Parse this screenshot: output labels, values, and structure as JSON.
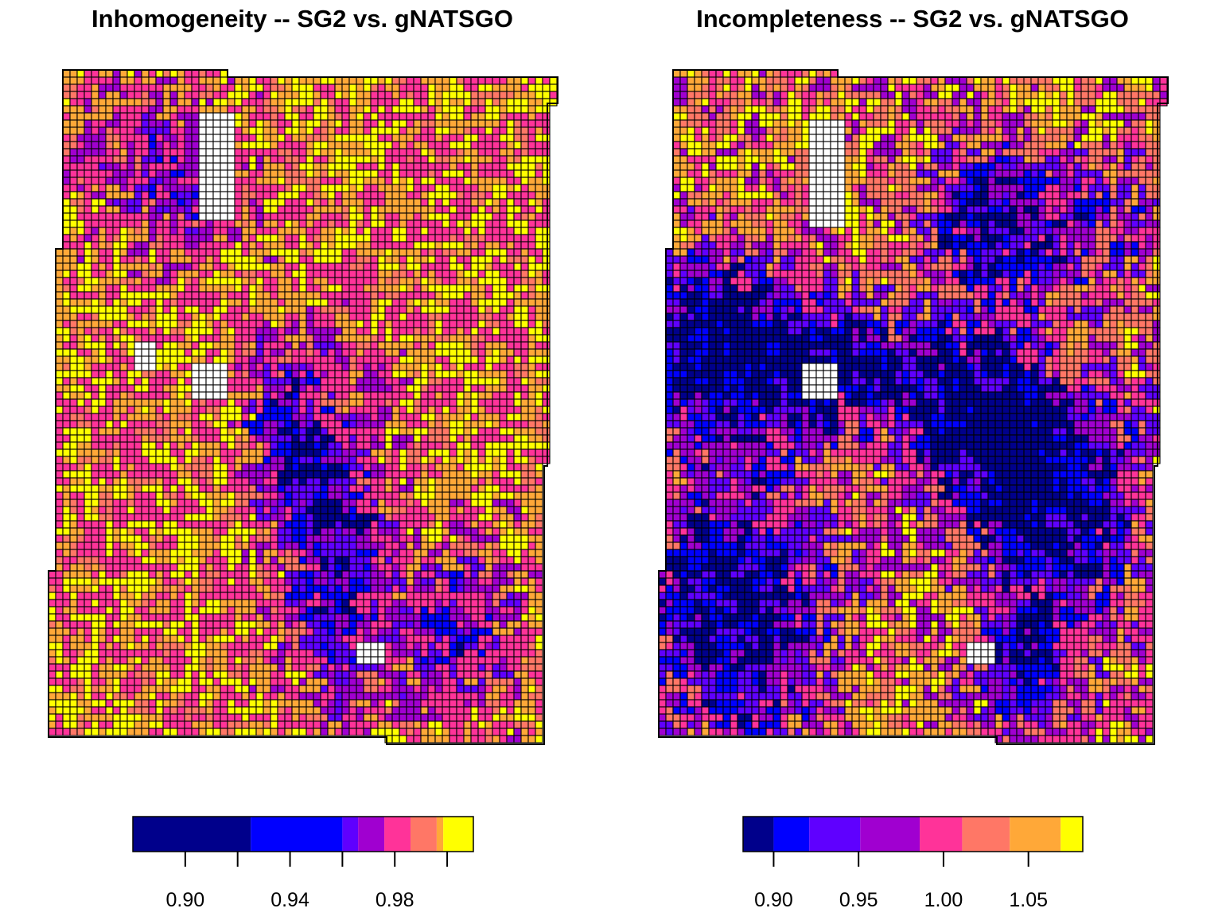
{
  "panels": [
    {
      "title": "Inhomogeneity -- SG2 vs. gNATSGO",
      "palette": [
        "#00008B",
        "#0000FF",
        "#5F00FF",
        "#A000D0",
        "#FF3399",
        "#FF7766",
        "#FFA838",
        "#FFFF00"
      ],
      "legend": {
        "breaks": [
          0.88,
          0.925,
          0.96,
          0.966,
          0.976,
          0.986,
          0.996,
          0.9985,
          1.01
        ],
        "ticks": [
          0.9,
          0.92,
          0.94,
          0.96,
          0.98,
          1.0
        ],
        "labels": [
          "0.90",
          "0.94",
          "0.98"
        ],
        "label_values": [
          0.9,
          0.94,
          0.98
        ]
      },
      "value_distribution": "mostly 0.98-1.00 (pink, orange, yellow); dark blue/purple strand through the centre and south-east"
    },
    {
      "title": "Incompleteness -- SG2 vs. gNATSGO",
      "palette": [
        "#00008B",
        "#0000FF",
        "#5F00FF",
        "#A000D0",
        "#FF3399",
        "#FF7766",
        "#FFA838",
        "#FFFF00"
      ],
      "legend": {
        "breaks": [
          0.882,
          0.9,
          0.921,
          0.951,
          0.986,
          1.011,
          1.039,
          1.069,
          1.082
        ],
        "ticks": [
          0.9,
          0.95,
          1.0,
          1.05
        ],
        "labels": [
          "0.90",
          "0.95",
          "1.00",
          "1.05"
        ],
        "label_values": [
          0.9,
          0.95,
          1.0,
          1.05
        ]
      },
      "value_distribution": "large dark blue and blue areas in the west, centre and east; pink, orange and yellow elsewhere"
    }
  ]
}
